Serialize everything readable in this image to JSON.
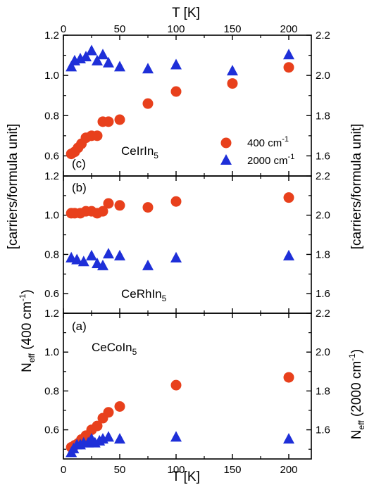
{
  "chart_data": {
    "type": "scatter",
    "x_axis": {
      "label": "T [K]",
      "range": [
        0,
        220
      ],
      "ticks": [
        "0",
        "50",
        "100",
        "150",
        "200"
      ]
    },
    "y_axis_left": {
      "label_main": "N",
      "label_sub": "eff",
      "label_tail": " (400 cm",
      "label_sup": "-1",
      "label_end": ")",
      "label_mid": "[carriers/formula unit]"
    },
    "y_axis_right": {
      "label_main": "N",
      "label_sub": "eff",
      "label_tail": " (2000 cm",
      "label_sup": "-1",
      "label_end": ")",
      "label_mid": "[carriers/formula unit]"
    },
    "legend": {
      "placement": "lower-right of top panel",
      "entries": [
        {
          "series": "400 cm-1",
          "text": "400 cm",
          "sup": "-1",
          "marker": "circle",
          "color": "#e8401c"
        },
        {
          "series": "2000 cm-1",
          "text": "2000 cm",
          "sup": "-1",
          "marker": "triangle",
          "color": "#1e2fd8"
        }
      ]
    },
    "panels": [
      {
        "id": "c",
        "tag": "(c)",
        "compound": {
          "base": "CeIrIn",
          "sub": "5"
        },
        "left_ylim": [
          0.5,
          1.2
        ],
        "right_ylim": [
          1.5,
          2.2
        ],
        "left_ticks": [
          "0.6",
          "0.8",
          "1.0",
          "1.2"
        ],
        "right_ticks": [
          "1.6",
          "1.8",
          "2.0",
          "2.2"
        ],
        "series": [
          {
            "name": "400 cm-1",
            "axis": "left",
            "marker": "circle",
            "color": "#e8401c",
            "points": [
              [
                7,
                0.61
              ],
              [
                10,
                0.62
              ],
              [
                13,
                0.64
              ],
              [
                16,
                0.66
              ],
              [
                20,
                0.69
              ],
              [
                25,
                0.7
              ],
              [
                30,
                0.7
              ],
              [
                35,
                0.77
              ],
              [
                40,
                0.77
              ],
              [
                50,
                0.78
              ],
              [
                75,
                0.86
              ],
              [
                100,
                0.92
              ],
              [
                150,
                0.96
              ],
              [
                200,
                1.04
              ]
            ]
          },
          {
            "name": "2000 cm-1",
            "axis": "right",
            "marker": "triangle",
            "color": "#1e2fd8",
            "points": [
              [
                7,
                2.04
              ],
              [
                10,
                2.07
              ],
              [
                15,
                2.08
              ],
              [
                20,
                2.09
              ],
              [
                25,
                2.12
              ],
              [
                30,
                2.07
              ],
              [
                35,
                2.1
              ],
              [
                40,
                2.06
              ],
              [
                50,
                2.04
              ],
              [
                75,
                2.03
              ],
              [
                100,
                2.05
              ],
              [
                150,
                2.02
              ],
              [
                200,
                2.1
              ]
            ]
          }
        ]
      },
      {
        "id": "b",
        "tag": "(b)",
        "compound": {
          "base": "CeRhIn",
          "sub": "5"
        },
        "left_ylim": [
          0.5,
          1.2
        ],
        "right_ylim": [
          1.5,
          2.2
        ],
        "left_ticks": [
          "0.6",
          "0.8",
          "1.0",
          "1.2"
        ],
        "right_ticks": [
          "1.6",
          "1.8",
          "2.0",
          "2.2"
        ],
        "series": [
          {
            "name": "400 cm-1",
            "axis": "left",
            "marker": "circle",
            "color": "#e8401c",
            "points": [
              [
                7,
                1.01
              ],
              [
                10,
                1.01
              ],
              [
                15,
                1.01
              ],
              [
                20,
                1.02
              ],
              [
                25,
                1.02
              ],
              [
                30,
                1.01
              ],
              [
                35,
                1.02
              ],
              [
                40,
                1.06
              ],
              [
                50,
                1.05
              ],
              [
                75,
                1.04
              ],
              [
                100,
                1.07
              ],
              [
                200,
                1.09
              ]
            ]
          },
          {
            "name": "2000 cm-1",
            "axis": "right",
            "marker": "triangle",
            "color": "#1e2fd8",
            "points": [
              [
                7,
                1.78
              ],
              [
                12,
                1.77
              ],
              [
                18,
                1.76
              ],
              [
                25,
                1.79
              ],
              [
                30,
                1.75
              ],
              [
                35,
                1.74
              ],
              [
                40,
                1.8
              ],
              [
                50,
                1.79
              ],
              [
                75,
                1.74
              ],
              [
                100,
                1.78
              ],
              [
                200,
                1.79
              ]
            ]
          }
        ]
      },
      {
        "id": "a",
        "tag": "(a)",
        "compound": {
          "base": "CeCoIn",
          "sub": "5"
        },
        "left_ylim": [
          0.45,
          1.2
        ],
        "right_ylim": [
          1.45,
          2.2
        ],
        "left_ticks": [
          "0.6",
          "0.8",
          "1.0",
          "1.2"
        ],
        "right_ticks": [
          "1.6",
          "1.8",
          "2.0",
          "2.2"
        ],
        "series": [
          {
            "name": "400 cm-1",
            "axis": "left",
            "marker": "circle",
            "color": "#e8401c",
            "points": [
              [
                7,
                0.51
              ],
              [
                10,
                0.52
              ],
              [
                13,
                0.53
              ],
              [
                16,
                0.55
              ],
              [
                20,
                0.57
              ],
              [
                25,
                0.6
              ],
              [
                30,
                0.62
              ],
              [
                35,
                0.66
              ],
              [
                40,
                0.69
              ],
              [
                50,
                0.72
              ],
              [
                100,
                0.83
              ],
              [
                200,
                0.87
              ]
            ]
          },
          {
            "name": "2000 cm-1",
            "axis": "right",
            "marker": "triangle",
            "color": "#1e2fd8",
            "points": [
              [
                7,
                1.48
              ],
              [
                9,
                1.5
              ],
              [
                12,
                1.52
              ],
              [
                15,
                1.52
              ],
              [
                18,
                1.53
              ],
              [
                22,
                1.53
              ],
              [
                25,
                1.55
              ],
              [
                28,
                1.53
              ],
              [
                32,
                1.54
              ],
              [
                35,
                1.55
              ],
              [
                40,
                1.56
              ],
              [
                50,
                1.55
              ],
              [
                100,
                1.56
              ],
              [
                200,
                1.55
              ]
            ]
          }
        ]
      }
    ]
  }
}
